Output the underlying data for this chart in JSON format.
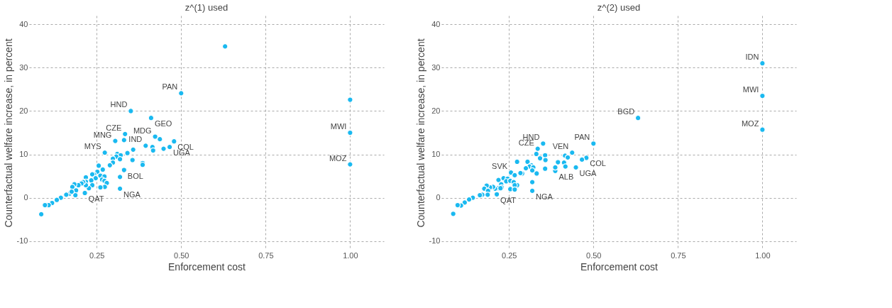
{
  "chart_data": [
    {
      "type": "scatter",
      "title": "z^(1) used",
      "xlabel": "Enforcement cost",
      "ylabel": "Counterfactual welfare increase, in percent",
      "xlim": [
        0.05,
        1.1
      ],
      "ylim": [
        -12,
        42
      ],
      "xticks": [
        {
          "value": 0.25,
          "label": "0.25"
        },
        {
          "value": 0.5,
          "label": "0.50"
        },
        {
          "value": 0.75,
          "label": "0.75"
        },
        {
          "value": 1.0,
          "label": "1.00"
        }
      ],
      "yticks": [
        -10,
        0,
        10,
        20,
        30,
        40
      ],
      "grid": true,
      "marker": "circle",
      "series": [
        {
          "color": "#1ab9f0",
          "x": [
            0.63,
            0.5,
            0.351,
            0.411,
            0.334,
            0.331,
            0.305,
            0.423,
            0.437,
            0.479,
            0.395,
            0.415,
            0.417,
            0.448,
            0.466,
            0.274,
            0.358,
            0.341,
            0.311,
            0.321,
            0.308,
            0.298,
            0.319,
            0.298,
            0.289,
            0.356,
            0.386,
            0.386,
            0.331,
            0.319,
            0.319,
            0.215,
            0.256,
            0.268,
            0.252,
            0.242,
            0.237,
            0.261,
            0.247,
            0.273,
            0.266,
            0.273,
            0.28,
            0.274,
            0.261,
            0.218,
            0.218,
            0.234,
            0.237,
            0.227,
            0.218,
            0.21,
            0.205,
            0.196,
            0.184,
            0.178,
            0.189,
            0.187,
            0.169,
            0.176,
            0.16,
            0.144,
            0.132,
            0.118,
            0.108,
            0.097,
            0.086,
            1.0,
            1.0,
            1.0
          ],
          "values": [
            34.9,
            24.1,
            20.0,
            18.4,
            14.7,
            13.3,
            13.1,
            14.1,
            13.5,
            13.0,
            12.0,
            11.7,
            10.9,
            11.3,
            11.7,
            10.4,
            11.1,
            10.3,
            10.1,
            9.8,
            9.5,
            9.0,
            8.9,
            8.1,
            7.5,
            8.7,
            8.0,
            7.6,
            6.4,
            2.1,
            4.8,
            1.1,
            7.4,
            6.5,
            6.0,
            5.4,
            5.4,
            5.1,
            4.5,
            4.9,
            4.2,
            3.9,
            3.4,
            2.5,
            2.4,
            4.7,
            3.7,
            4.0,
            2.9,
            2.2,
            2.9,
            3.6,
            3.3,
            2.9,
            3.1,
            2.5,
            1.7,
            0.6,
            0.9,
            1.4,
            0.7,
            0.0,
            -0.5,
            -1.2,
            -1.7,
            -1.7,
            -3.8,
            22.6,
            15.0,
            7.7
          ]
        }
      ],
      "annotations": [
        {
          "text": "PAN",
          "x": 0.5,
          "y": 24.1
        },
        {
          "text": "HND",
          "x": 0.351,
          "y": 20.0
        },
        {
          "text": "GEO",
          "x": 0.411,
          "y": 18.4
        },
        {
          "text": "CZE",
          "x": 0.334,
          "y": 14.7
        },
        {
          "text": "MNG",
          "x": 0.305,
          "y": 13.1
        },
        {
          "text": "MDG",
          "x": 0.423,
          "y": 14.1
        },
        {
          "text": "COL",
          "x": 0.479,
          "y": 13.0
        },
        {
          "text": "IND",
          "x": 0.395,
          "y": 12.0
        },
        {
          "text": "UGA",
          "x": 0.466,
          "y": 11.7
        },
        {
          "text": "MYS",
          "x": 0.274,
          "y": 10.4
        },
        {
          "text": "BOL",
          "x": 0.331,
          "y": 6.4
        },
        {
          "text": "NGA",
          "x": 0.319,
          "y": 2.1
        },
        {
          "text": "QAT",
          "x": 0.215,
          "y": 1.1
        },
        {
          "text": "MWI",
          "x": 1.0,
          "y": 15.0
        },
        {
          "text": "MOZ",
          "x": 1.0,
          "y": 7.7
        }
      ]
    },
    {
      "type": "scatter",
      "title": "z^(2) used",
      "xlabel": "Enforcement cost",
      "ylabel": "Counterfactual welfare increase, in percent",
      "xlim": [
        0.05,
        1.1
      ],
      "ylim": [
        -12,
        42
      ],
      "xticks": [
        {
          "value": 0.25,
          "label": "0.25"
        },
        {
          "value": 0.5,
          "label": "0.50"
        },
        {
          "value": 0.75,
          "label": "0.75"
        },
        {
          "value": 1.0,
          "label": "1.00"
        }
      ],
      "yticks": [
        -10,
        0,
        10,
        20,
        30,
        40
      ],
      "grid": true,
      "marker": "circle",
      "series": [
        {
          "color": "#1ab9f0",
          "x": [
            1.0,
            1.0,
            1.0,
            0.632,
            0.5,
            0.351,
            0.335,
            0.437,
            0.479,
            0.466,
            0.448,
            0.387,
            0.387,
            0.416,
            0.424,
            0.413,
            0.395,
            0.417,
            0.331,
            0.357,
            0.358,
            0.342,
            0.357,
            0.305,
            0.316,
            0.311,
            0.3,
            0.322,
            0.319,
            0.332,
            0.319,
            0.319,
            0.274,
            0.289,
            0.284,
            0.256,
            0.267,
            0.219,
            0.234,
            0.246,
            0.242,
            0.254,
            0.264,
            0.274,
            0.267,
            0.227,
            0.228,
            0.254,
            0.267,
            0.214,
            0.218,
            0.225,
            0.209,
            0.203,
            0.194,
            0.184,
            0.177,
            0.188,
            0.187,
            0.171,
            0.164,
            0.143,
            0.132,
            0.119,
            0.108,
            0.098,
            0.085
          ],
          "values": [
            31.0,
            23.5,
            15.7,
            18.4,
            12.5,
            12.5,
            11.3,
            10.4,
            9.2,
            8.8,
            7.0,
            6.2,
            7.0,
            9.7,
            9.3,
            8.1,
            8.2,
            7.2,
            10.1,
            9.8,
            8.7,
            9.1,
            6.7,
            8.3,
            7.5,
            7.2,
            6.8,
            7.0,
            6.3,
            5.6,
            1.6,
            3.6,
            8.3,
            5.6,
            5.7,
            5.8,
            5.2,
            4.1,
            4.5,
            4.4,
            3.8,
            3.9,
            3.6,
            2.9,
            2.9,
            3.1,
            2.4,
            2.0,
            1.9,
            0.8,
            2.2,
            2.2,
            2.1,
            2.5,
            2.4,
            2.8,
            2.1,
            1.6,
            0.7,
            0.7,
            0.6,
            0.0,
            -0.4,
            -1.1,
            -1.8,
            -1.7,
            -3.7
          ]
        }
      ],
      "annotations": [
        {
          "text": "IDN",
          "x": 1.0,
          "y": 31.0
        },
        {
          "text": "MWI",
          "x": 1.0,
          "y": 23.5
        },
        {
          "text": "MOZ",
          "x": 1.0,
          "y": 15.7
        },
        {
          "text": "BGD",
          "x": 0.632,
          "y": 18.4
        },
        {
          "text": "PAN",
          "x": 0.5,
          "y": 12.5
        },
        {
          "text": "HND",
          "x": 0.351,
          "y": 12.5
        },
        {
          "text": "CZE",
          "x": 0.335,
          "y": 11.3
        },
        {
          "text": "VEN",
          "x": 0.437,
          "y": 10.4
        },
        {
          "text": "COL",
          "x": 0.479,
          "y": 9.2
        },
        {
          "text": "UGA",
          "x": 0.448,
          "y": 7.0
        },
        {
          "text": "ALB",
          "x": 0.387,
          "y": 6.2
        },
        {
          "text": "SVK",
          "x": 0.256,
          "y": 5.8
        },
        {
          "text": "NGA",
          "x": 0.319,
          "y": 1.6
        },
        {
          "text": "QAT",
          "x": 0.214,
          "y": 0.8
        }
      ]
    }
  ]
}
